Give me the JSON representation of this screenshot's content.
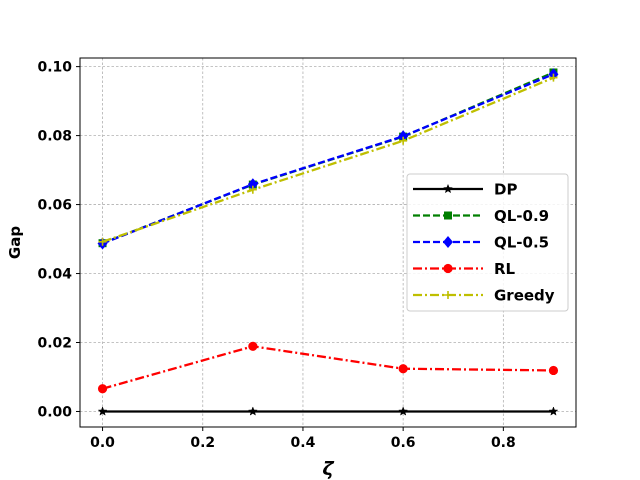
{
  "chart_data": {
    "type": "line",
    "title": "",
    "xlabel": "ζ",
    "ylabel": "Gap",
    "xlim": [
      -0.045,
      0.945
    ],
    "ylim": [
      -0.0045,
      0.1025
    ],
    "xticks": [
      0.0,
      0.2,
      0.4,
      0.6,
      0.8
    ],
    "xtick_labels": [
      "0.0",
      "0.2",
      "0.4",
      "0.6",
      "0.8"
    ],
    "yticks": [
      0.0,
      0.02,
      0.04,
      0.06,
      0.08,
      0.1
    ],
    "ytick_labels": [
      "0.00",
      "0.02",
      "0.04",
      "0.06",
      "0.08",
      "0.10"
    ],
    "grid": true,
    "legend_position": "center-right",
    "x": [
      0.0,
      0.3,
      0.6,
      0.9
    ],
    "series": [
      {
        "name": "DP",
        "values": [
          0.0,
          0.0,
          0.0,
          0.0
        ],
        "color": "#000000",
        "marker": "star",
        "dash": "solid"
      },
      {
        "name": "QL-0.9",
        "values": [
          0.0488,
          0.0658,
          0.0797,
          0.0983
        ],
        "color": "#007f00",
        "marker": "square",
        "dash": "dashed"
      },
      {
        "name": "QL-0.5",
        "values": [
          0.0487,
          0.0659,
          0.0798,
          0.0978
        ],
        "color": "#0000ff",
        "marker": "diamond",
        "dash": "dashed"
      },
      {
        "name": "RL",
        "values": [
          0.0066,
          0.0189,
          0.0124,
          0.0119
        ],
        "color": "#ff0000",
        "marker": "circle",
        "dash": "dashdot"
      },
      {
        "name": "Greedy",
        "values": [
          0.0492,
          0.0643,
          0.0785,
          0.0968
        ],
        "color": "#bfbf00",
        "marker": "plus",
        "dash": "dashdot"
      }
    ]
  }
}
